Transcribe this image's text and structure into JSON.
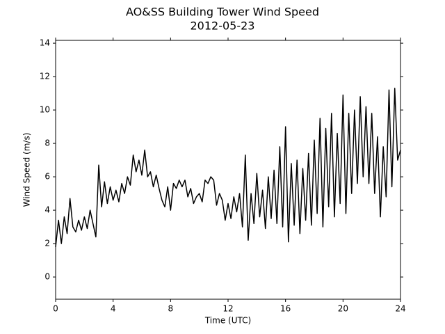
{
  "chart_data": {
    "type": "line",
    "title": "AO&SS Building Tower Wind Speed",
    "subtitle": "2012-05-23",
    "x_label": "Time (UTC)",
    "y_label": "Wind Speed (m/s)",
    "x": [
      0,
      0.2,
      0.4,
      0.6,
      0.8,
      1,
      1.2,
      1.4,
      1.6,
      1.8,
      2,
      2.2,
      2.4,
      2.6,
      2.8,
      3,
      3.2,
      3.4,
      3.6,
      3.8,
      4,
      4.2,
      4.4,
      4.6,
      4.8,
      5,
      5.2,
      5.4,
      5.6,
      5.8,
      6,
      6.2,
      6.4,
      6.6,
      6.8,
      7,
      7.2,
      7.4,
      7.6,
      7.8,
      8,
      8.2,
      8.4,
      8.6,
      8.8,
      9,
      9.2,
      9.4,
      9.6,
      9.8,
      10,
      10.2,
      10.4,
      10.6,
      10.8,
      11,
      11.2,
      11.4,
      11.6,
      11.8,
      12,
      12.2,
      12.4,
      12.6,
      12.8,
      13,
      13.2,
      13.4,
      13.6,
      13.8,
      14,
      14.2,
      14.4,
      14.6,
      14.8,
      15,
      15.2,
      15.4,
      15.6,
      15.8,
      16,
      16.2,
      16.4,
      16.6,
      16.8,
      17,
      17.2,
      17.4,
      17.6,
      17.8,
      18,
      18.2,
      18.4,
      18.6,
      18.8,
      19,
      19.2,
      19.4,
      19.6,
      19.8,
      20,
      20.2,
      20.4,
      20.6,
      20.8,
      21,
      21.2,
      21.4,
      21.6,
      21.8,
      22,
      22.2,
      22.4,
      22.6,
      22.8,
      23,
      23.2,
      23.4,
      23.6,
      23.8,
      24
    ],
    "series": [
      {
        "color": "#000000",
        "values": [
          1.8,
          3.4,
          2.0,
          3.6,
          2.6,
          4.7,
          3.0,
          2.7,
          3.4,
          2.8,
          3.6,
          2.9,
          4.0,
          3.2,
          2.4,
          6.7,
          4.2,
          5.7,
          4.4,
          5.4,
          4.6,
          5.2,
          4.5,
          5.6,
          5.0,
          6.0,
          5.5,
          7.3,
          6.3,
          7.0,
          6.1,
          7.6,
          6.0,
          6.3,
          5.4,
          6.1,
          5.3,
          4.6,
          4.2,
          5.4,
          4.0,
          5.6,
          5.3,
          5.8,
          5.4,
          5.8,
          4.8,
          5.3,
          4.4,
          4.8,
          5.0,
          4.5,
          5.8,
          5.6,
          6.0,
          5.8,
          4.3,
          5.0,
          4.6,
          3.4,
          4.4,
          3.5,
          4.8,
          3.9,
          5.0,
          3.0,
          7.3,
          2.2,
          5.0,
          3.2,
          6.2,
          3.6,
          5.2,
          2.9,
          6.0,
          3.5,
          6.4,
          3.2,
          7.8,
          3.0,
          9.0,
          2.1,
          6.8,
          3.1,
          7.0,
          2.6,
          6.5,
          3.4,
          7.4,
          3.1,
          8.2,
          3.8,
          9.5,
          3.0,
          8.9,
          4.2,
          9.8,
          3.6,
          8.6,
          4.4,
          10.9,
          3.8,
          9.8,
          5.0,
          10.0,
          5.6,
          10.8,
          6.0,
          10.2,
          5.6,
          9.8,
          5.0,
          8.4,
          3.6,
          7.8,
          4.8,
          11.2,
          5.4,
          11.3,
          7.0,
          7.6
        ]
      }
    ],
    "xlim": [
      0,
      24
    ],
    "xticks": [
      0,
      4,
      8,
      12,
      16,
      20,
      24
    ],
    "ylim": [
      -1.33,
      14.17
    ],
    "yticks": [
      0,
      2,
      4,
      6,
      8,
      10,
      12,
      14
    ],
    "grid": false
  }
}
